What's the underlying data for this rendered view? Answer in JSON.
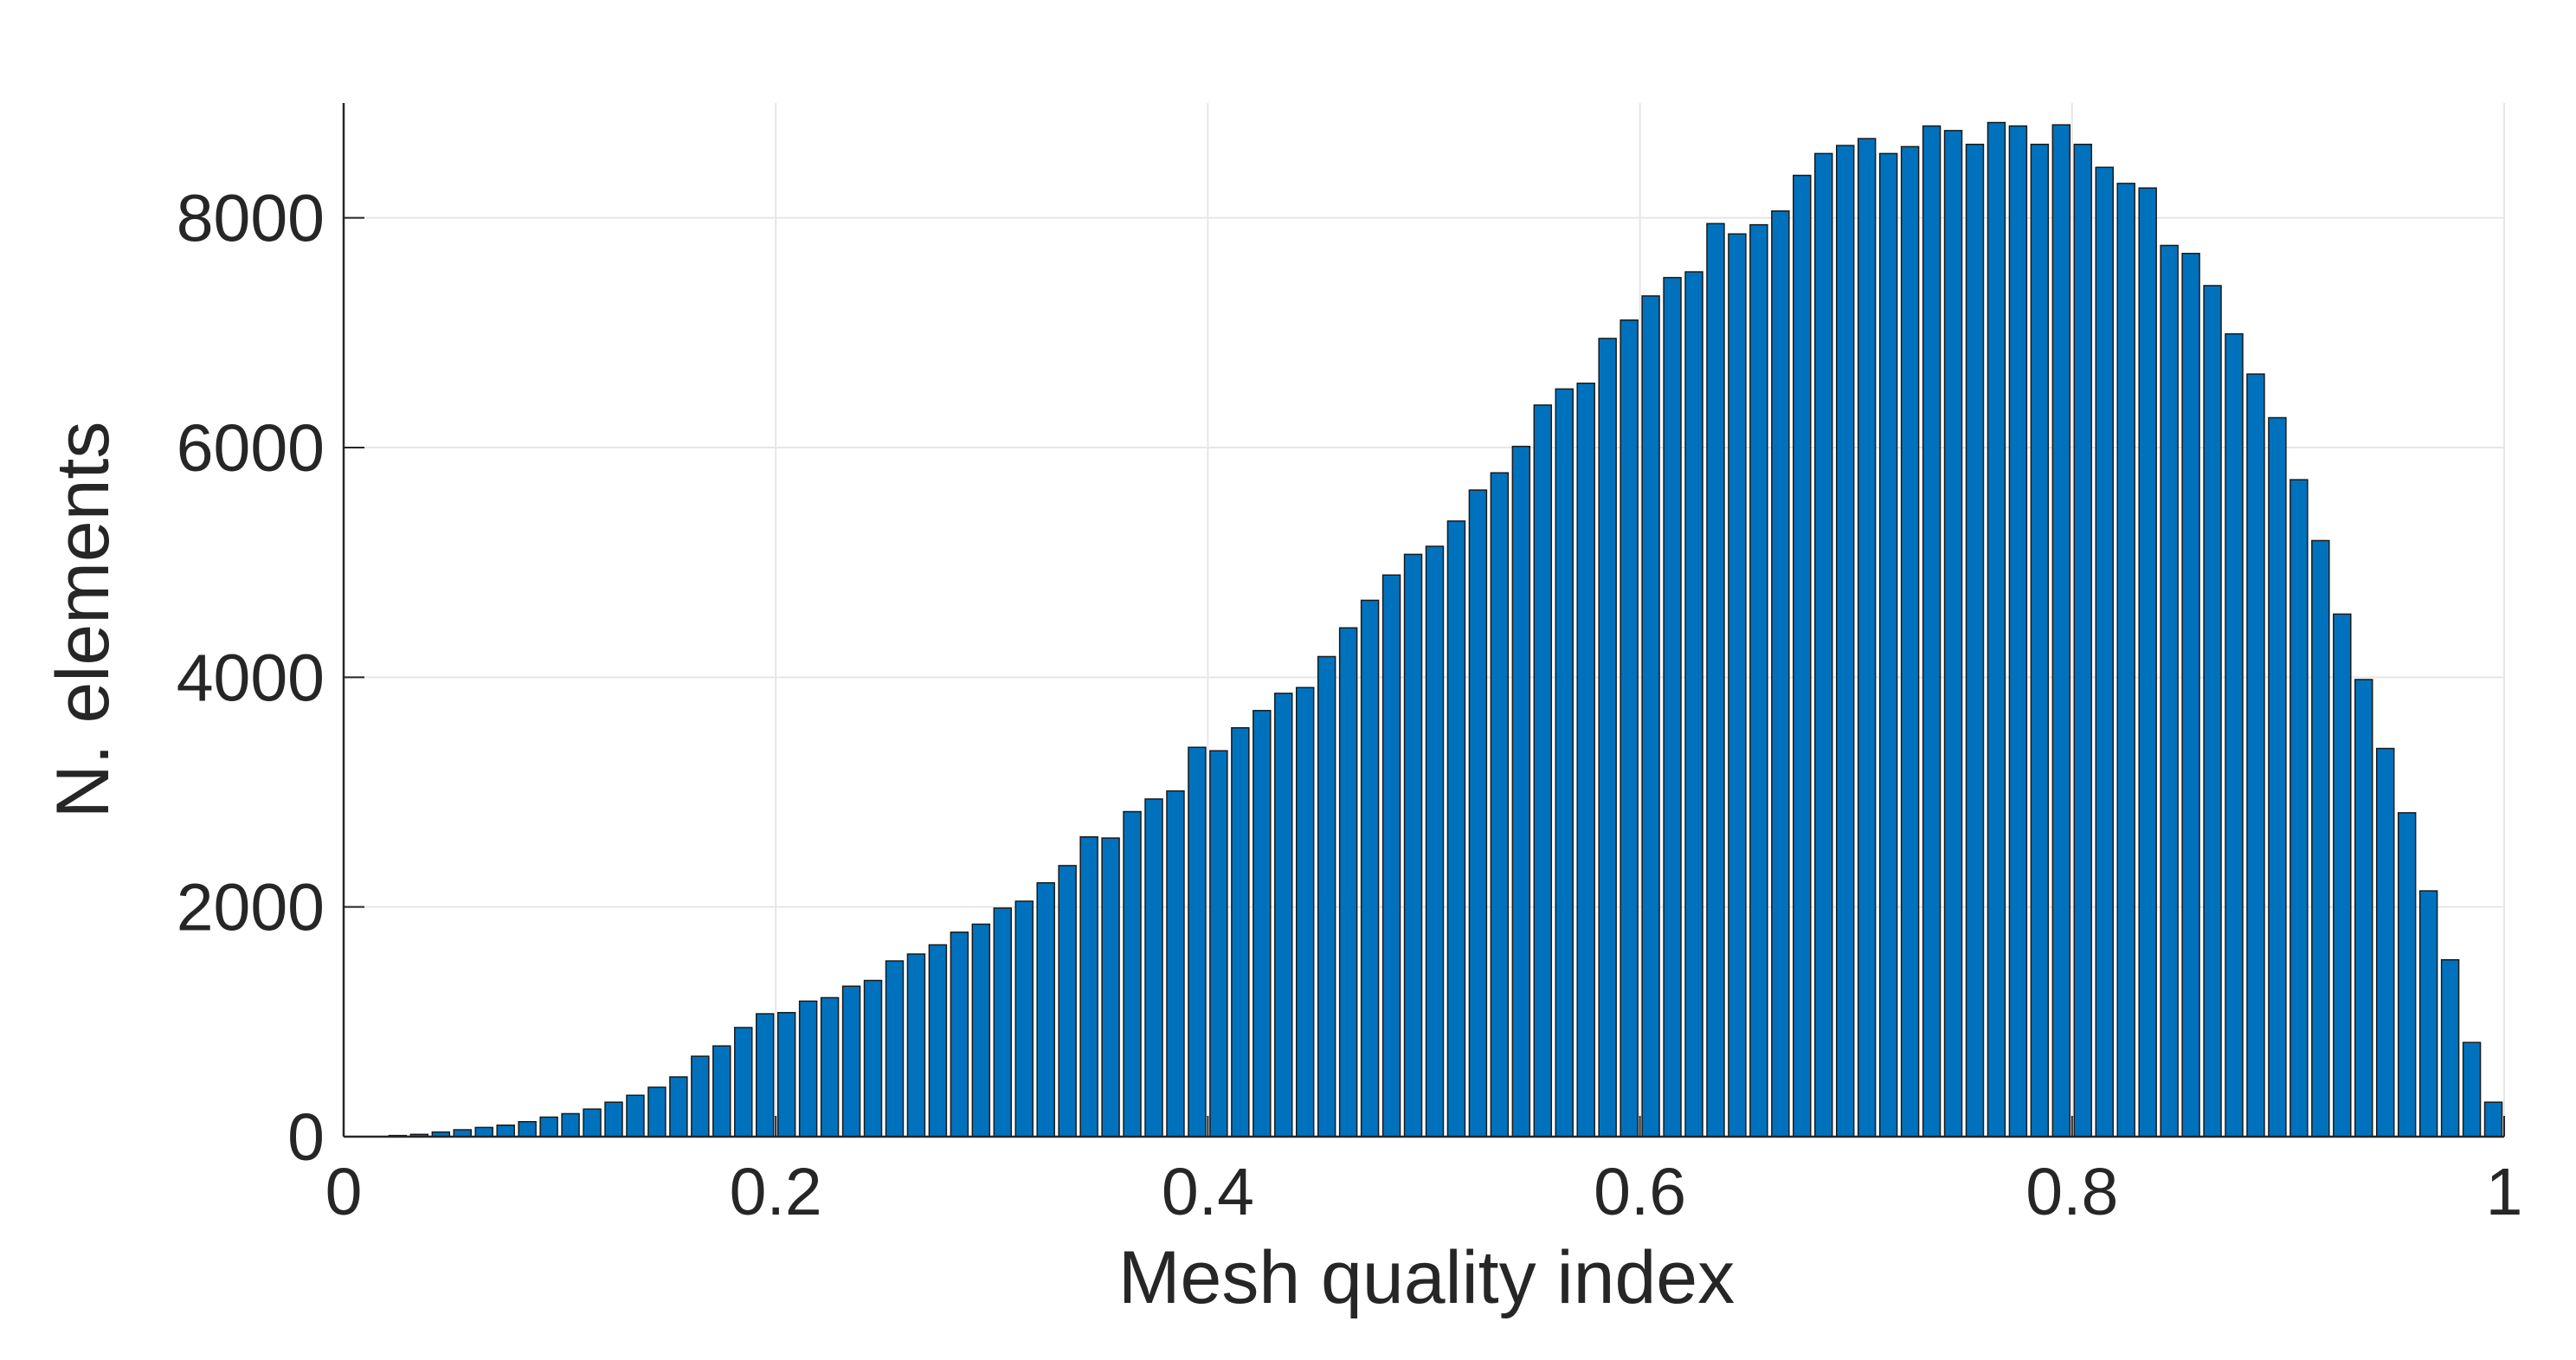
{
  "chart_data": {
    "type": "histogram",
    "xlabel": "Mesh quality index",
    "ylabel": "N. elements",
    "color": "#0072bd",
    "edgecolor": "#1a1a1a",
    "grid": true,
    "xlim": [
      0,
      1
    ],
    "ylim": [
      0,
      9000
    ],
    "xticks": [
      0,
      0.2,
      0.4,
      0.6,
      0.8,
      1
    ],
    "yticks": [
      0,
      2000,
      4000,
      6000,
      8000
    ],
    "bins": [
      0,
      0.01,
      0.02,
      0.03,
      0.04,
      0.05,
      0.06,
      0.07,
      0.08,
      0.09,
      0.1,
      0.11,
      0.12,
      0.13,
      0.14,
      0.15,
      0.16,
      0.17,
      0.18,
      0.19,
      0.2,
      0.21,
      0.22,
      0.23,
      0.24,
      0.25,
      0.26,
      0.27,
      0.28,
      0.29,
      0.3,
      0.31,
      0.32,
      0.33,
      0.34,
      0.35,
      0.36,
      0.37,
      0.38,
      0.39,
      0.4,
      0.41,
      0.42,
      0.43,
      0.44,
      0.45,
      0.46,
      0.47,
      0.48,
      0.49,
      0.5,
      0.51,
      0.52,
      0.53,
      0.54,
      0.55,
      0.56,
      0.57,
      0.58,
      0.59,
      0.6,
      0.61,
      0.62,
      0.63,
      0.64,
      0.65,
      0.66,
      0.67,
      0.68,
      0.69,
      0.7,
      0.71,
      0.72,
      0.73,
      0.74,
      0.75,
      0.76,
      0.77,
      0.78,
      0.79,
      0.8,
      0.81,
      0.82,
      0.83,
      0.84,
      0.85,
      0.86,
      0.87,
      0.88,
      0.89,
      0.9,
      0.91,
      0.92,
      0.93,
      0.94,
      0.95,
      0.96,
      0.97,
      0.98,
      0.99,
      1
    ],
    "counts": [
      0,
      0,
      10,
      20,
      40,
      60,
      80,
      100,
      130,
      170,
      200,
      240,
      300,
      360,
      430,
      520,
      700,
      790,
      950,
      1070,
      1080,
      1180,
      1210,
      1310,
      1360,
      1530,
      1590,
      1670,
      1780,
      1850,
      1990,
      2050,
      2210,
      2360,
      2610,
      2600,
      2830,
      2940,
      3010,
      3390,
      3360,
      3560,
      3710,
      3860,
      3910,
      4180,
      4430,
      4670,
      4890,
      5070,
      5140,
      5360,
      5630,
      5780,
      6010,
      6370,
      6510,
      6560,
      6950,
      7110,
      7320,
      7480,
      7530,
      7950,
      7860,
      7940,
      8060,
      8370,
      8560,
      8630,
      8690,
      8560,
      8620,
      8800,
      8760,
      8640,
      8830,
      8800,
      8640,
      8810,
      8640,
      8440,
      8300,
      8260,
      7760,
      7690,
      7410,
      6990,
      6640,
      6260,
      5720,
      5190,
      4550,
      3980,
      3380,
      2820,
      2140,
      1540,
      820,
      300
    ]
  }
}
